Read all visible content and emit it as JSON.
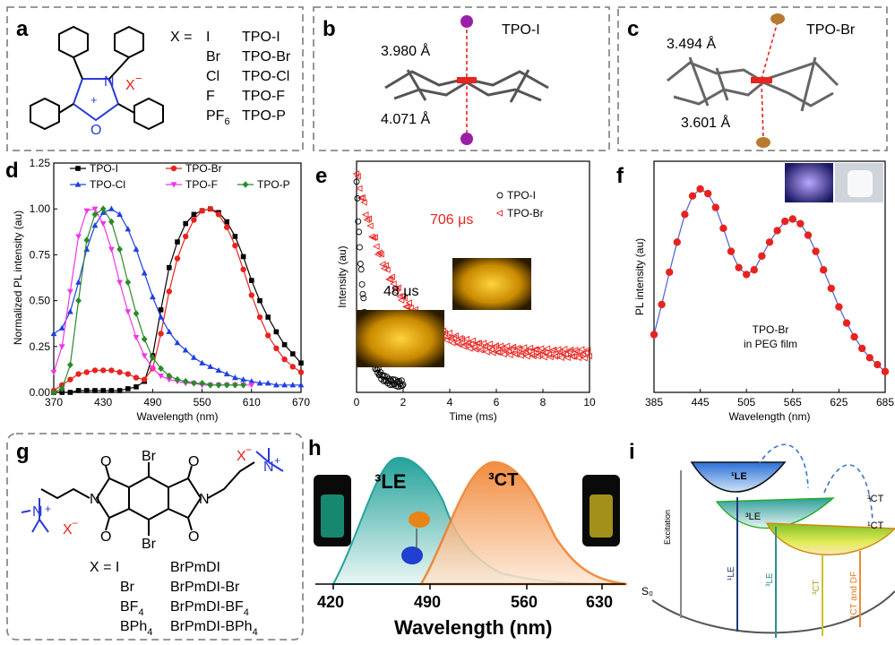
{
  "panels": {
    "a": {
      "label": "a",
      "x_equals": "X =",
      "charge_plus": "+",
      "anion": "X",
      "anion_charge": "−",
      "ring_n": "N",
      "ring_o": "O",
      "table": [
        {
          "x": "I",
          "name": "TPO-I"
        },
        {
          "x": "Br",
          "name": "TPO-Br"
        },
        {
          "x": "Cl",
          "name": "TPO-Cl"
        },
        {
          "x": "F",
          "name": "TPO-F"
        },
        {
          "x": "PF6",
          "name": "TPO-P"
        }
      ]
    },
    "b": {
      "label": "b",
      "title": "TPO-I",
      "d_top": "3.980 Å",
      "d_bottom": "4.071 Å"
    },
    "c": {
      "label": "c",
      "title": "TPO-Br",
      "d_top": "3.494 Å",
      "d_bottom": "3.601 Å"
    },
    "g": {
      "label": "g",
      "br_top": "Br",
      "br_bottom": "Br",
      "n_left": "N",
      "n_right": "N",
      "o": "O",
      "anion": "X",
      "anion_charge": "−",
      "plus": "+",
      "amm_n": "N",
      "x_equals": "X = I",
      "table": [
        {
          "x": "",
          "name": "BrPmDI"
        },
        {
          "x": "Br",
          "name": "BrPmDI-Br"
        },
        {
          "x": "BF4",
          "name": "BrPmDI-BF4"
        },
        {
          "x": "BPh4",
          "name": "BrPmDI-BPh4"
        }
      ]
    },
    "h": {
      "label": "h",
      "le": "³LE",
      "ct": "³CT",
      "xlabel": "Wavelength (nm)",
      "ticks": [
        "420",
        "490",
        "560",
        "630"
      ],
      "colors": {
        "le": "#1a9e96",
        "ct": "#f07a20"
      }
    },
    "i": {
      "label": "i",
      "s0": "S₀",
      "excitation": "Excitation",
      "le1": "¹LE",
      "le3": "³LE",
      "ct3": "³CT",
      "ct1": "¹CT",
      "arrows": [
        "¹LE",
        "³LE",
        "³CT",
        "¹CT and DF"
      ]
    }
  },
  "chart_data": [
    {
      "panel": "d",
      "label": "d",
      "type": "line",
      "xlabel": "Wavelength (nm)",
      "ylabel": "Normalized PL intensity (au)",
      "xlim": [
        370,
        670
      ],
      "ylim": [
        0,
        1.25
      ],
      "xticks": [
        370,
        430,
        490,
        550,
        610,
        670
      ],
      "yticks": [
        0.0,
        0.25,
        0.5,
        0.75,
        1.0,
        1.25
      ],
      "ytick_labels": [
        "0.00",
        "0.25",
        "0.50",
        "0.75",
        "1.00",
        "1.25"
      ],
      "legend": "top",
      "series": [
        {
          "name": "TPO-I",
          "color": "#000000",
          "marker": "square",
          "x": [
            370,
            380,
            390,
            400,
            410,
            420,
            430,
            440,
            450,
            460,
            470,
            480,
            490,
            500,
            510,
            520,
            530,
            540,
            550,
            560,
            570,
            580,
            590,
            600,
            610,
            620,
            630,
            640,
            650,
            660,
            670
          ],
          "y": [
            0.0,
            0.0,
            0.0,
            0.01,
            0.01,
            0.01,
            0.01,
            0.01,
            0.01,
            0.02,
            0.03,
            0.06,
            0.2,
            0.45,
            0.68,
            0.82,
            0.92,
            0.97,
            0.99,
            1.0,
            0.98,
            0.93,
            0.85,
            0.74,
            0.61,
            0.5,
            0.41,
            0.33,
            0.26,
            0.21,
            0.16
          ]
        },
        {
          "name": "TPO-Br",
          "color": "#e8231f",
          "marker": "circle",
          "x": [
            370,
            380,
            390,
            400,
            410,
            420,
            430,
            440,
            450,
            460,
            470,
            480,
            490,
            500,
            510,
            520,
            530,
            540,
            550,
            560,
            570,
            580,
            590,
            600,
            610,
            620,
            630,
            640,
            650,
            660,
            670
          ],
          "y": [
            0.01,
            0.04,
            0.07,
            0.1,
            0.11,
            0.12,
            0.12,
            0.12,
            0.11,
            0.1,
            0.08,
            0.07,
            0.13,
            0.32,
            0.55,
            0.73,
            0.85,
            0.94,
            0.99,
            1.0,
            0.97,
            0.9,
            0.8,
            0.67,
            0.53,
            0.41,
            0.31,
            0.24,
            0.18,
            0.14,
            0.11
          ]
        },
        {
          "name": "TPO-Cl",
          "color": "#1f3fe0",
          "marker": "triangle",
          "x": [
            370,
            380,
            390,
            400,
            410,
            420,
            430,
            440,
            450,
            460,
            470,
            480,
            490,
            500,
            510,
            520,
            530,
            540,
            550,
            560,
            570,
            580,
            590,
            600,
            610,
            620,
            630,
            640,
            650,
            660,
            670
          ],
          "y": [
            0.32,
            0.35,
            0.44,
            0.6,
            0.78,
            0.91,
            0.98,
            1.0,
            0.97,
            0.89,
            0.78,
            0.65,
            0.52,
            0.41,
            0.33,
            0.27,
            0.23,
            0.19,
            0.16,
            0.14,
            0.12,
            0.1,
            0.08,
            0.07,
            0.06,
            0.05,
            0.05,
            0.04,
            0.04,
            0.04,
            0.04
          ]
        },
        {
          "name": "TPO-F",
          "color": "#ee36e6",
          "marker": "triangle-down",
          "x": [
            370,
            380,
            390,
            400,
            410,
            420,
            430,
            440,
            450,
            460,
            470,
            480,
            490,
            500,
            510,
            520,
            530,
            540,
            550,
            560,
            570,
            580,
            590,
            600,
            610
          ],
          "y": [
            0.11,
            0.25,
            0.55,
            0.85,
            0.99,
            1.0,
            0.92,
            0.78,
            0.6,
            0.44,
            0.3,
            0.2,
            0.13,
            0.09,
            0.07,
            0.06,
            0.05,
            0.05,
            0.04,
            0.04,
            0.04,
            0.04,
            0.04,
            0.04,
            0.04
          ]
        },
        {
          "name": "TPO-P",
          "color": "#2a8a2a",
          "marker": "diamond",
          "x": [
            370,
            380,
            390,
            400,
            410,
            420,
            430,
            440,
            450,
            460,
            470,
            480,
            490,
            500,
            510,
            520,
            530,
            540,
            550,
            560,
            570,
            580,
            590,
            600
          ],
          "y": [
            0.0,
            0.02,
            0.15,
            0.5,
            0.83,
            0.97,
            1.0,
            0.93,
            0.78,
            0.6,
            0.43,
            0.29,
            0.19,
            0.13,
            0.09,
            0.07,
            0.06,
            0.05,
            0.05,
            0.04,
            0.04,
            0.04,
            0.04,
            0.04
          ]
        }
      ]
    },
    {
      "panel": "e",
      "label": "e",
      "type": "scatter",
      "xlabel": "Time (ms)",
      "ylabel": "Intensity (au)",
      "xlim": [
        0,
        10
      ],
      "xticks": [
        0,
        2,
        4,
        6,
        8,
        10
      ],
      "legend": "top-right",
      "annotations": {
        "br_lifetime": "706 μs",
        "i_lifetime": "48 μs"
      },
      "series": [
        {
          "name": "TPO-I",
          "color": "#000000",
          "marker": "circle-open",
          "lifetime_ms": 0.048
        },
        {
          "name": "TPO-Br",
          "color": "#e8231f",
          "marker": "triangle-open",
          "lifetime_ms": 0.706
        }
      ]
    },
    {
      "panel": "f",
      "label": "f",
      "type": "line",
      "xlabel": "Wavelength (nm)",
      "ylabel": "PL intensity (au)",
      "xlim": [
        385,
        685
      ],
      "xticks": [
        385,
        445,
        505,
        565,
        625,
        685
      ],
      "annotation": [
        "TPO-Br",
        "in PEG film"
      ],
      "series": [
        {
          "name": "",
          "color": "#e8231f",
          "line_color": "#4a5fd6",
          "x": [
            385,
            395,
            405,
            415,
            425,
            435,
            445,
            455,
            465,
            475,
            485,
            495,
            505,
            515,
            525,
            535,
            545,
            555,
            565,
            575,
            585,
            595,
            605,
            615,
            625,
            635,
            645,
            655,
            665,
            675,
            685
          ],
          "y": [
            0.25,
            0.38,
            0.52,
            0.65,
            0.77,
            0.85,
            0.88,
            0.86,
            0.8,
            0.71,
            0.61,
            0.54,
            0.51,
            0.53,
            0.59,
            0.65,
            0.7,
            0.74,
            0.75,
            0.73,
            0.68,
            0.61,
            0.53,
            0.45,
            0.37,
            0.3,
            0.24,
            0.19,
            0.15,
            0.12,
            0.09
          ]
        }
      ]
    }
  ]
}
